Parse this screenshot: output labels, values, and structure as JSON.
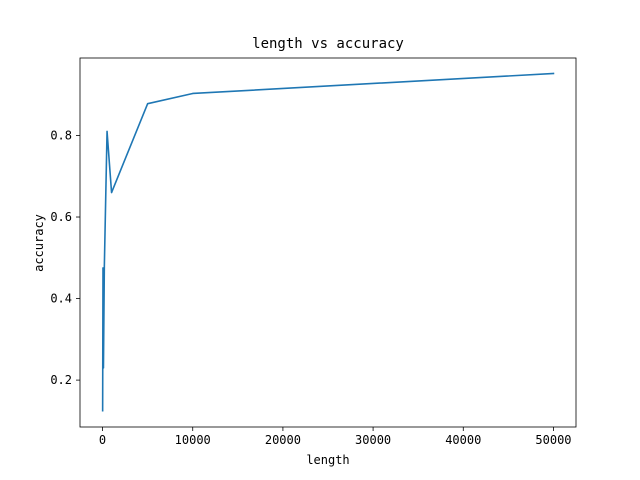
{
  "chart_data": {
    "type": "line",
    "title": "length vs accuracy",
    "xlabel": "length",
    "ylabel": "accuracy",
    "xlim": [
      -2500,
      52500
    ],
    "ylim": [
      0.085,
      0.99
    ],
    "xticks": [
      0,
      10000,
      20000,
      30000,
      40000,
      50000
    ],
    "xtick_labels": [
      "0",
      "10000",
      "20000",
      "30000",
      "40000",
      "50000"
    ],
    "yticks": [
      0.2,
      0.4,
      0.6,
      0.8
    ],
    "ytick_labels": [
      "0.2",
      "0.4",
      "0.6",
      "0.8"
    ],
    "grid": false,
    "legend": "none",
    "series": [
      {
        "color": "#1f77b4",
        "x": [
          10,
          50,
          100,
          200,
          500,
          1000,
          5000,
          10000,
          50000
        ],
        "y": [
          0.125,
          0.475,
          0.23,
          0.48,
          0.81,
          0.66,
          0.878,
          0.903,
          0.952
        ]
      }
    ]
  }
}
